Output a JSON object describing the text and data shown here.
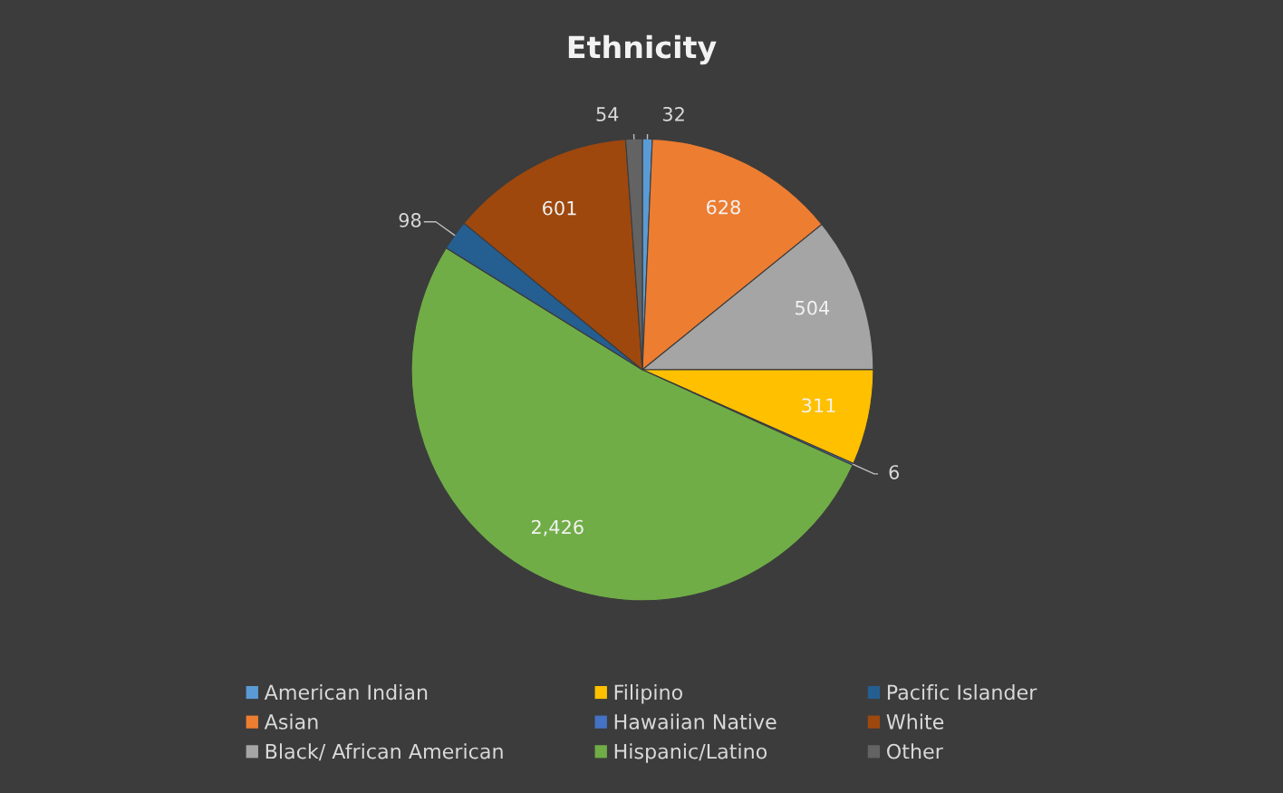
{
  "chart_data": {
    "type": "pie",
    "title": "Ethnicity",
    "categories": [
      "American Indian",
      "Asian",
      "Black/ African American",
      "Filipino",
      "Hawaiian Native",
      "Hispanic/Latino",
      "Pacific Islander",
      "White",
      "Other"
    ],
    "values": [
      32,
      628,
      504,
      311,
      6,
      2426,
      98,
      601,
      54
    ],
    "value_labels": [
      "32",
      "628",
      "504",
      "311",
      "6",
      "2,426",
      "98",
      "601",
      "54"
    ],
    "colors": [
      "#5b9bd5",
      "#ed7d31",
      "#a5a5a5",
      "#ffc000",
      "#4472c4",
      "#70ad47",
      "#255e91",
      "#9e480e",
      "#636363"
    ],
    "legend": "bottom"
  }
}
